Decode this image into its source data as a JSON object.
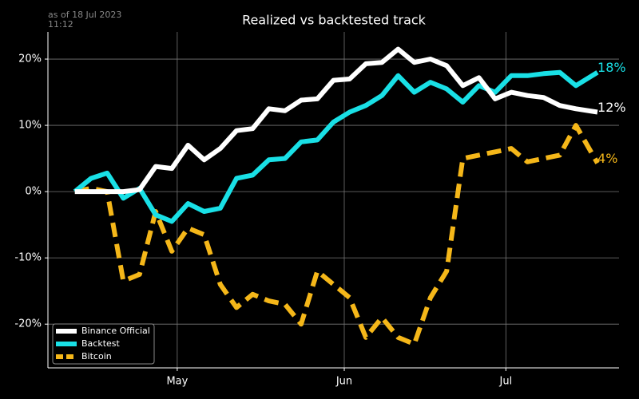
{
  "chart_data": {
    "type": "line",
    "title": "Realized vs backtested track",
    "annotation": [
      "as of 18 Jul 2023",
      "11:12"
    ],
    "x": [
      "2023-04-12",
      "2023-04-15",
      "2023-04-18",
      "2023-04-21",
      "2023-04-24",
      "2023-04-27",
      "2023-04-30",
      "2023-05-03",
      "2023-05-06",
      "2023-05-09",
      "2023-05-12",
      "2023-05-15",
      "2023-05-18",
      "2023-05-21",
      "2023-05-24",
      "2023-05-27",
      "2023-05-30",
      "2023-06-02",
      "2023-06-05",
      "2023-06-08",
      "2023-06-11",
      "2023-06-14",
      "2023-06-17",
      "2023-06-20",
      "2023-06-23",
      "2023-06-26",
      "2023-06-29",
      "2023-07-02",
      "2023-07-05",
      "2023-07-08",
      "2023-07-11",
      "2023-07-14",
      "2023-07-18"
    ],
    "series": [
      {
        "name": "Binance Official",
        "color": "#ffffff",
        "dash": false,
        "end_label": "12%",
        "values": [
          0,
          0,
          0,
          0,
          0.3,
          3.8,
          3.5,
          7,
          4.8,
          6.5,
          9.2,
          9.5,
          12.5,
          12.2,
          13.8,
          14,
          16.8,
          17,
          19.3,
          19.5,
          21.5,
          19.5,
          20,
          19,
          16,
          17.2,
          14,
          15,
          14.5,
          14.2,
          13,
          12.5,
          12
        ]
      },
      {
        "name": "Backtest",
        "color": "#19e0e6",
        "dash": false,
        "end_label": "18%",
        "values": [
          0,
          2,
          2.8,
          -1,
          0.5,
          -3.5,
          -4.5,
          -1.8,
          -3,
          -2.5,
          2,
          2.5,
          4.8,
          5,
          7.5,
          7.8,
          10.5,
          12,
          13,
          14.5,
          17.5,
          15,
          16.5,
          15.5,
          13.5,
          16,
          15,
          17.5,
          17.5,
          17.8,
          18,
          16,
          18
        ]
      },
      {
        "name": "Bitcoin",
        "color": "#f5b719",
        "dash": true,
        "end_label": "4%",
        "values": [
          0,
          0.5,
          0,
          -13.5,
          -12.5,
          -3,
          -9,
          -5.5,
          -6.5,
          -14,
          -17.5,
          -15.5,
          -16.5,
          -17,
          -20,
          -12,
          -14,
          -16,
          -22,
          -19,
          -22,
          -23,
          -16,
          -12,
          5,
          5.5,
          6,
          6.5,
          4.5,
          5,
          5.5,
          10,
          4.3
        ]
      }
    ],
    "xlim": [
      "2023-04-07",
      "2023-07-22"
    ],
    "xticks": [
      {
        "value": "2023-05-01",
        "label": "May"
      },
      {
        "value": "2023-06-01",
        "label": "Jun"
      },
      {
        "value": "2023-07-01",
        "label": "Jul"
      }
    ],
    "ylim": [
      -26.6,
      24.1
    ],
    "yticks": [
      {
        "value": -20,
        "label": "-20%"
      },
      {
        "value": -10,
        "label": "-10%"
      },
      {
        "value": 0,
        "label": "0%"
      },
      {
        "value": 10,
        "label": "10%"
      },
      {
        "value": 20,
        "label": "20%"
      }
    ],
    "grid": true,
    "legend": "lower left"
  }
}
